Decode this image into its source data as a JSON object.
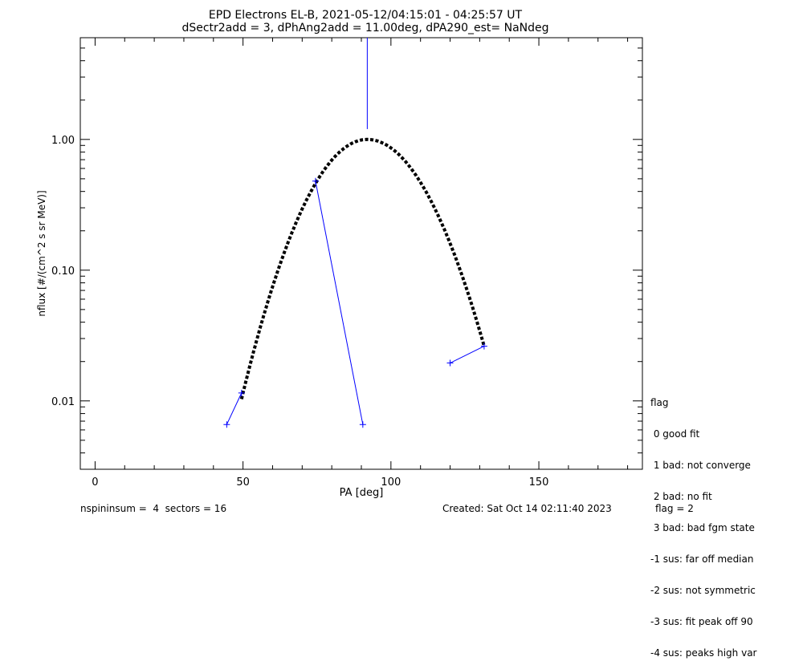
{
  "chart_data": {
    "type": "line",
    "title_lines": [
      "EPD Electrons EL-B, 2021-05-12/04:15:01 - 04:25:57 UT",
      "dSectr2add = 3, dPhAng2add = 11.00deg, dPA290_est=   NaNdeg"
    ],
    "xlabel": "PA [deg]",
    "ylabel": "nflux [#/(cm^2 s sr MeV)]",
    "xlim": [
      -5,
      185
    ],
    "ylim": [
      0.003,
      6.0
    ],
    "y_scale": "log",
    "x_ticks": [
      0,
      50,
      100,
      150
    ],
    "x_tick_labels": [
      "0",
      "50",
      "100",
      "150"
    ],
    "y_ticks": [
      0.01,
      0.1,
      1.0
    ],
    "y_tick_labels": [
      "0.01",
      "0.10",
      "1.00"
    ],
    "grid": false,
    "measured": {
      "color": "#0000ff",
      "segments": [
        [
          [
            44.5,
            0.0066
          ],
          [
            49.5,
            0.0115
          ]
        ],
        [
          [
            74.5,
            0.48
          ],
          [
            90.5,
            0.0066
          ]
        ],
        [
          [
            120,
            0.0195
          ],
          [
            131.5,
            0.0262
          ]
        ],
        [
          [
            92,
            1.2
          ],
          [
            92,
            6.0
          ]
        ]
      ],
      "points": [
        [
          44.5,
          0.0066
        ],
        [
          49.5,
          0.0115
        ],
        [
          74.5,
          0.48
        ],
        [
          90.5,
          0.0066
        ],
        [
          120,
          0.0195
        ],
        [
          131.5,
          0.0262
        ]
      ]
    },
    "fit": {
      "style": "dashed",
      "color": "#000000",
      "x_range": [
        49.5,
        131.5
      ],
      "peak_x": 92,
      "peak_y": 1.0,
      "curve_y_at": {
        "50": 0.0115,
        "75": 0.48,
        "131.5": 0.0262
      }
    }
  },
  "legend": {
    "title": "flag",
    "items": [
      " 0 good fit",
      " 1 bad: not converge",
      " 2 bad: no fit",
      " 3 bad: bad fgm state",
      "-1 sus: far off median",
      "-2 sus: not symmetric",
      "-3 sus: fit peak off 90",
      "-4 sus: peaks high var"
    ]
  },
  "footer": {
    "left": "nspininsum =  4  sectors = 16",
    "created": "Created: Sat Oct 14 02:11:40 2023",
    "flag": "flag = 2"
  }
}
